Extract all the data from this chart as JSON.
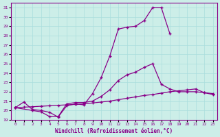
{
  "bg_color": "#cceee8",
  "grid_color": "#aadddd",
  "line_color": "#880088",
  "xlim": [
    -0.5,
    23.5
  ],
  "ylim": [
    19,
    31.5
  ],
  "yticks": [
    19,
    20,
    21,
    22,
    23,
    24,
    25,
    26,
    27,
    28,
    29,
    30,
    31
  ],
  "xticks": [
    0,
    1,
    2,
    3,
    4,
    5,
    6,
    7,
    8,
    9,
    10,
    11,
    12,
    13,
    14,
    15,
    16,
    17,
    18,
    19,
    20,
    21,
    22,
    23
  ],
  "xlabel": "Windchill (Refroidissement éolien,°C)",
  "line1_x": [
    0,
    1,
    2,
    3,
    4,
    5,
    6,
    7,
    8,
    9,
    10,
    11,
    12,
    13,
    14,
    15,
    16,
    17,
    18
  ],
  "line1_y": [
    20.3,
    20.9,
    20.1,
    20.0,
    19.8,
    19.3,
    20.5,
    20.7,
    20.6,
    21.8,
    23.5,
    25.8,
    28.7,
    28.9,
    29.0,
    29.6,
    31.0,
    31.0,
    28.2
  ],
  "line2_x": [
    0,
    1,
    2,
    3,
    4,
    5,
    6,
    7,
    8,
    9,
    10,
    11,
    12,
    13,
    14,
    15,
    16,
    17,
    18,
    19,
    20,
    21,
    22,
    23
  ],
  "line2_y": [
    20.3,
    20.35,
    20.4,
    20.45,
    20.5,
    20.55,
    20.6,
    20.65,
    20.7,
    20.8,
    20.9,
    21.0,
    21.15,
    21.3,
    21.45,
    21.6,
    21.7,
    21.85,
    22.0,
    22.1,
    22.2,
    22.3,
    21.9,
    21.7
  ],
  "line3_x": [
    0,
    2,
    3,
    4,
    5,
    6,
    7,
    8,
    9,
    10,
    11,
    12,
    13,
    14,
    15,
    16,
    17,
    18,
    19,
    20,
    21,
    22,
    23
  ],
  "line3_y": [
    20.3,
    20.0,
    19.85,
    19.35,
    19.35,
    20.7,
    20.85,
    20.85,
    21.0,
    21.5,
    22.2,
    23.2,
    23.8,
    24.1,
    24.6,
    25.0,
    22.8,
    22.3,
    22.0,
    22.0,
    22.0,
    21.9,
    21.8
  ]
}
